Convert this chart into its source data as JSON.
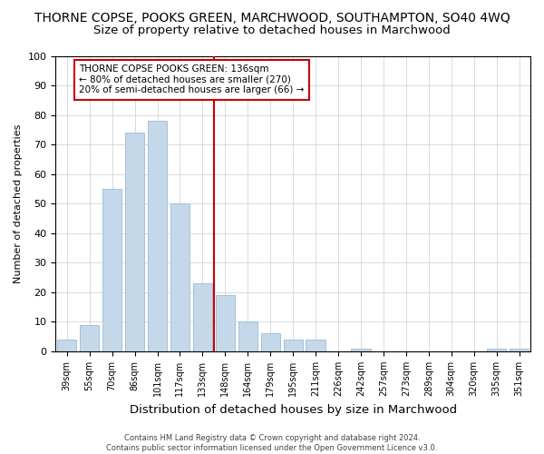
{
  "title": "THORNE COPSE, POOKS GREEN, MARCHWOOD, SOUTHAMPTON, SO40 4WQ",
  "subtitle": "Size of property relative to detached houses in Marchwood",
  "xlabel": "Distribution of detached houses by size in Marchwood",
  "ylabel": "Number of detached properties",
  "categories": [
    "39sqm",
    "55sqm",
    "70sqm",
    "86sqm",
    "101sqm",
    "117sqm",
    "133sqm",
    "148sqm",
    "164sqm",
    "179sqm",
    "195sqm",
    "211sqm",
    "226sqm",
    "242sqm",
    "257sqm",
    "273sqm",
    "289sqm",
    "304sqm",
    "320sqm",
    "335sqm",
    "351sqm"
  ],
  "values": [
    4,
    9,
    55,
    74,
    78,
    50,
    23,
    19,
    10,
    6,
    4,
    4,
    0,
    1,
    0,
    0,
    0,
    0,
    0,
    1,
    1
  ],
  "bar_color": "#c5d8ea",
  "bar_edge_color": "#9bbbd4",
  "vline_color": "#cc0000",
  "annotation_text": "THORNE COPSE POOKS GREEN: 136sqm\n← 80% of detached houses are smaller (270)\n20% of semi-detached houses are larger (66) →",
  "annotation_box_color": "#ffffff",
  "annotation_box_edge_color": "#cc0000",
  "ylim": [
    0,
    100
  ],
  "footer1": "Contains HM Land Registry data © Crown copyright and database right 2024.",
  "footer2": "Contains public sector information licensed under the Open Government Licence v3.0.",
  "bg_color": "#ffffff",
  "title_fontsize": 10,
  "subtitle_fontsize": 9.5,
  "tick_fontsize": 7,
  "ylabel_fontsize": 8,
  "xlabel_fontsize": 9.5,
  "annotation_fontsize": 7.5,
  "footer_fontsize": 6
}
